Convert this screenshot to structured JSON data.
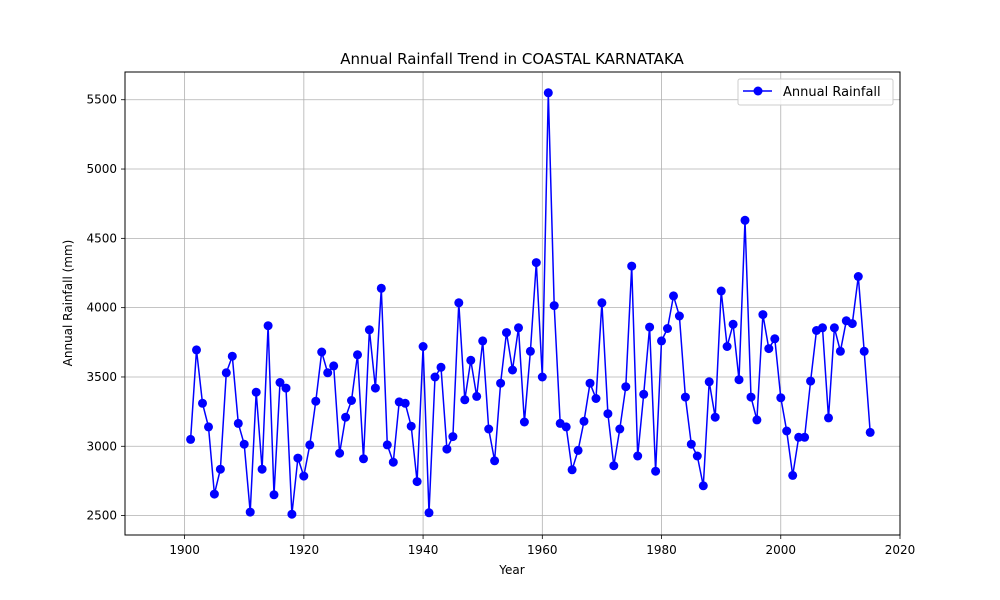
{
  "chart_data": {
    "type": "line",
    "title": "Annual Rainfall Trend in COASTAL KARNATAKA",
    "xlabel": "Year",
    "ylabel": "Annual Rainfall (mm)",
    "xlim": [
      1890,
      2020
    ],
    "ylim": [
      2360,
      5700
    ],
    "xticks": [
      1900,
      1920,
      1940,
      1960,
      1980,
      2000,
      2020
    ],
    "yticks": [
      2500,
      3000,
      3500,
      4000,
      4500,
      5000,
      5500
    ],
    "grid": true,
    "legend_position": "top-right",
    "colors": {
      "series": "#0000ff",
      "grid": "#b0b0b0"
    },
    "series": [
      {
        "name": "Annual Rainfall",
        "x": [
          1901,
          1902,
          1903,
          1904,
          1905,
          1906,
          1907,
          1908,
          1909,
          1910,
          1911,
          1912,
          1913,
          1914,
          1915,
          1916,
          1917,
          1918,
          1919,
          1920,
          1921,
          1922,
          1923,
          1924,
          1925,
          1926,
          1927,
          1928,
          1929,
          1930,
          1931,
          1932,
          1933,
          1934,
          1935,
          1936,
          1937,
          1938,
          1939,
          1940,
          1941,
          1942,
          1943,
          1944,
          1945,
          1946,
          1947,
          1948,
          1949,
          1950,
          1951,
          1952,
          1953,
          1954,
          1955,
          1956,
          1957,
          1958,
          1959,
          1960,
          1961,
          1962,
          1963,
          1964,
          1965,
          1966,
          1967,
          1968,
          1969,
          1970,
          1971,
          1972,
          1973,
          1974,
          1975,
          1976,
          1977,
          1978,
          1979,
          1980,
          1981,
          1982,
          1983,
          1984,
          1985,
          1986,
          1987,
          1988,
          1989,
          1990,
          1991,
          1992,
          1993,
          1994,
          1995,
          1996,
          1997,
          1998,
          1999,
          2000,
          2001,
          2002,
          2003,
          2004,
          2005,
          2006,
          2007,
          2008,
          2009,
          2010,
          2011,
          2012,
          2013,
          2014,
          2015
        ],
        "values": [
          3050,
          3695,
          3310,
          3140,
          2655,
          2835,
          3530,
          3650,
          3165,
          3015,
          2525,
          3390,
          2835,
          3870,
          2650,
          3460,
          3420,
          2510,
          2915,
          2785,
          3010,
          3325,
          3680,
          3530,
          3580,
          2950,
          3210,
          3330,
          3660,
          2910,
          3840,
          3420,
          4140,
          3010,
          2885,
          3320,
          3310,
          3145,
          2745,
          3720,
          2520,
          3500,
          3570,
          2980,
          3070,
          4035,
          3335,
          3620,
          3360,
          3760,
          3125,
          2895,
          3455,
          3820,
          3550,
          3855,
          3175,
          3685,
          4325,
          3500,
          5550,
          4015,
          3165,
          3140,
          2830,
          2970,
          3180,
          3455,
          3345,
          4035,
          3235,
          2860,
          3125,
          3430,
          4300,
          2930,
          3375,
          3860,
          2820,
          3760,
          3850,
          4085,
          3940,
          3355,
          3015,
          2930,
          2715,
          3465,
          3210,
          4120,
          3720,
          3880,
          3480,
          4630,
          3355,
          3190,
          3950,
          3705,
          3775,
          3350,
          3110,
          2790,
          3065,
          3065,
          3470,
          3835,
          3855,
          3205,
          3855,
          3685,
          3905,
          3885,
          4225,
          3685,
          3100
        ]
      }
    ]
  }
}
